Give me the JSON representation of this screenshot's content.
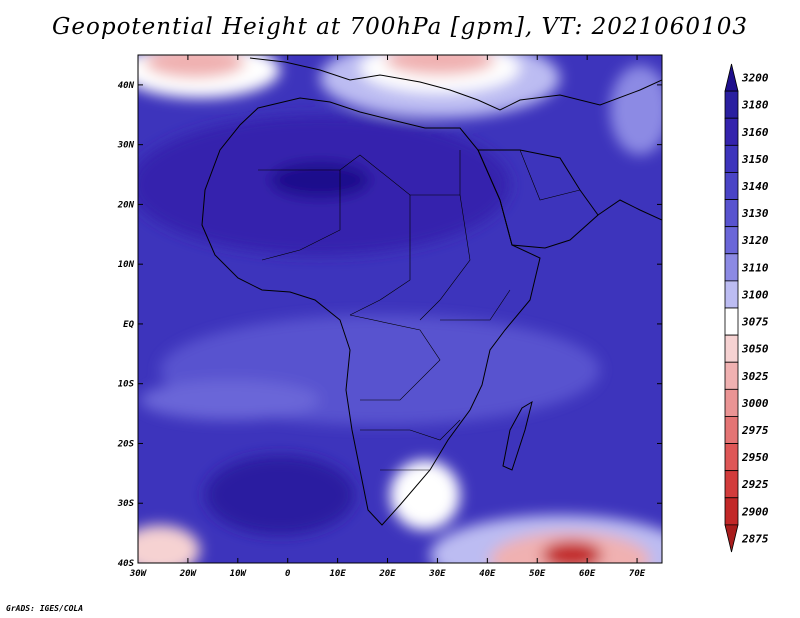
{
  "title": "Geopotential Height at 700hPa [gpm], VT: 2021060103",
  "credit": "GrADS: IGES/COLA",
  "axes": {
    "lat_labels": [
      "40N",
      "30N",
      "20N",
      "10N",
      "EQ",
      "10S",
      "20S",
      "30S",
      "40S"
    ],
    "lat_values": [
      40,
      30,
      20,
      10,
      0,
      -10,
      -20,
      -30,
      -40
    ],
    "lon_labels": [
      "30W",
      "20W",
      "10W",
      "0",
      "10E",
      "20E",
      "30E",
      "40E",
      "50E",
      "60E",
      "70E"
    ],
    "lon_values": [
      -30,
      -20,
      -10,
      0,
      10,
      20,
      30,
      40,
      50,
      60,
      70
    ],
    "lon_range": [
      -30,
      75
    ],
    "lat_range": [
      -40,
      45
    ]
  },
  "legend": {
    "levels": [
      "3200",
      "3180",
      "3160",
      "3150",
      "3140",
      "3130",
      "3120",
      "3110",
      "3100",
      "3075",
      "3050",
      "3025",
      "3000",
      "2975",
      "2950",
      "2925",
      "2900",
      "2875"
    ],
    "colors": [
      "#1e0f8c",
      "#2a1fa0",
      "#3423ad",
      "#3d34bc",
      "#4a44c6",
      "#5853cf",
      "#6a66d8",
      "#8c8ae4",
      "#bcbcf2",
      "#ffffff",
      "#f6d2d2",
      "#f0b1b1",
      "#ea9494",
      "#e47474",
      "#de5656",
      "#d23c3c",
      "#c22828",
      "#a81c1c"
    ]
  },
  "field": {
    "background_color": "#3d34bc",
    "highs": [
      "subtropical high over Sahara",
      "South Atlantic high"
    ],
    "lows": [
      "Mediterranean trough",
      "Southern Ocean low near 57E 38S"
    ]
  }
}
